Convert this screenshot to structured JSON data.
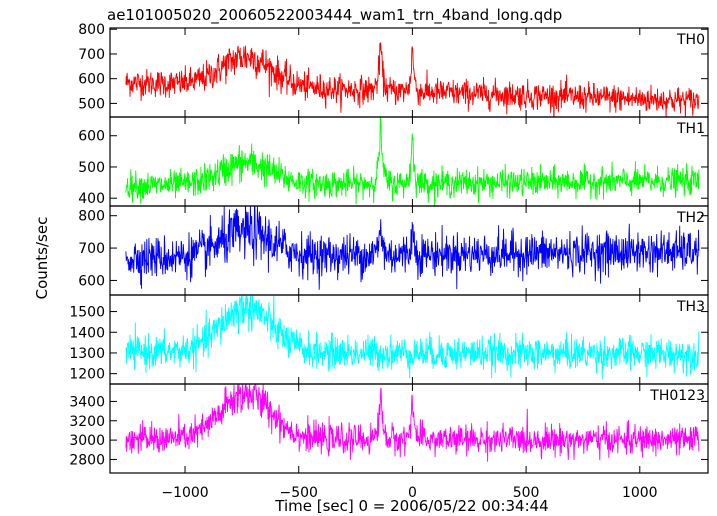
{
  "title": "ae101005020_20060522003444_wam1_trn_4band_long.qdp",
  "chart_data": {
    "type": "line",
    "title": "ae101005020_20060522003444_wam1_trn_4band_long.qdp",
    "xlabel": "Time [sec] 0 = 2006/05/22 00:34:44",
    "ylabel": "Counts/sec",
    "xlim": [
      -1330,
      1300
    ],
    "xticks": [
      -1000,
      -500,
      0,
      500,
      1000
    ],
    "xtick_labels": [
      "−1000",
      "−500",
      "0",
      "500",
      "1000"
    ],
    "x_range_data": [
      -1260,
      1260
    ],
    "grid": false,
    "features": {
      "broad_hump": {
        "center": -730,
        "width": 110
      },
      "spike_1": {
        "center": -140
      },
      "spike_2": {
        "center": 0
      }
    },
    "panels": [
      {
        "label": "TH0",
        "color": "#ff0000",
        "ylim": [
          445,
          805
        ],
        "yticks": [
          500,
          600,
          700,
          800
        ],
        "baseline_start": 585,
        "baseline_end": 510,
        "noise": 28,
        "hump": 120,
        "spike_1": 200,
        "spike_2": 205
      },
      {
        "label": "TH1",
        "color": "#00ff00",
        "ylim": [
          375,
          660
        ],
        "yticks": [
          400,
          500,
          600
        ],
        "baseline_start": 440,
        "baseline_end": 455,
        "noise": 22,
        "hump": 70,
        "spike_1": 200,
        "spike_2": 175
      },
      {
        "label": "TH2",
        "color": "#0000ff",
        "ylim": [
          555,
          830
        ],
        "yticks": [
          600,
          700,
          800
        ],
        "baseline_start": 670,
        "baseline_end": 690,
        "noise": 32,
        "hump": 75,
        "spike_1": 90,
        "spike_2": 95
      },
      {
        "label": "TH3",
        "color": "#00ffff",
        "ylim": [
          1150,
          1580
        ],
        "yticks": [
          1200,
          1300,
          1400,
          1500
        ],
        "baseline_start": 1305,
        "baseline_end": 1295,
        "noise": 40,
        "hump": 220,
        "spike_1": 0,
        "spike_2": 0
      },
      {
        "label": "TH0123",
        "color": "#ff00ff",
        "ylim": [
          2660,
          3580
        ],
        "yticks": [
          2800,
          3000,
          3200,
          3400
        ],
        "baseline_start": 3010,
        "baseline_end": 3000,
        "noise": 75,
        "hump": 470,
        "spike_1": 520,
        "spike_2": 560
      }
    ]
  }
}
